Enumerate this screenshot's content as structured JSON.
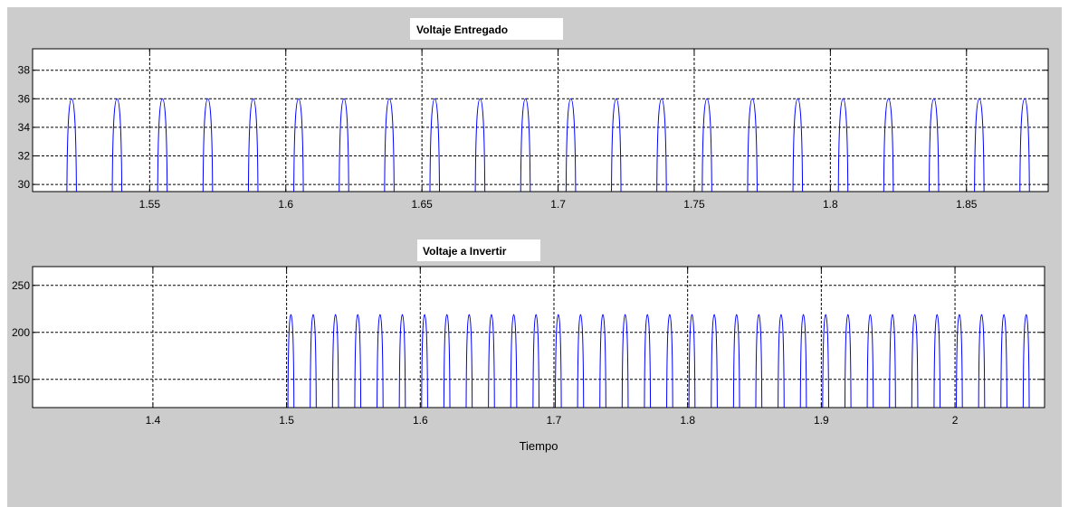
{
  "figure": {
    "background": "#cccccc",
    "axes_background": "#ffffff",
    "line_color": "#0000ff"
  },
  "chart_data": [
    {
      "type": "line",
      "title": "Voltaje Entregado",
      "xlabel": "",
      "ylabel": "",
      "xlim": [
        1.507,
        1.88
      ],
      "ylim": [
        29.5,
        39.5
      ],
      "xticks": [
        1.55,
        1.6,
        1.65,
        1.7,
        1.75,
        1.8,
        1.85
      ],
      "xtick_labels": [
        "1.55",
        "1.6",
        "1.65",
        "1.7",
        "1.75",
        "1.8",
        "1.85"
      ],
      "yticks": [
        30,
        32,
        34,
        36,
        38
      ],
      "ytick_labels": [
        "30",
        "32",
        "34",
        "36",
        "38"
      ],
      "grid": true,
      "series": [
        {
          "color": "#0000ff",
          "pulse_start": 1.5196,
          "pulse_period": 0.016667,
          "pulse_width": 0.0035,
          "pulse_base": 29.5,
          "pulse_peak": 36
        }
      ]
    },
    {
      "type": "line",
      "title": "Voltaje a Invertir",
      "xlabel": "Tiempo",
      "ylabel": "",
      "xlim": [
        1.31,
        2.067
      ],
      "ylim": [
        120,
        270
      ],
      "xticks": [
        1.4,
        1.5,
        1.6,
        1.7,
        1.8,
        1.9,
        2
      ],
      "xtick_labels": [
        "1.4",
        "1.5",
        "1.6",
        "1.7",
        "1.8",
        "1.9",
        "2"
      ],
      "yticks": [
        150,
        200,
        250
      ],
      "ytick_labels": [
        "150",
        "200",
        "250"
      ],
      "grid": true,
      "series": [
        {
          "color": "#0000ff",
          "pulse_start": 1.501,
          "pulse_period": 0.016667,
          "pulse_width": 0.0045,
          "pulse_base": 120,
          "pulse_peak": 219
        }
      ]
    }
  ]
}
